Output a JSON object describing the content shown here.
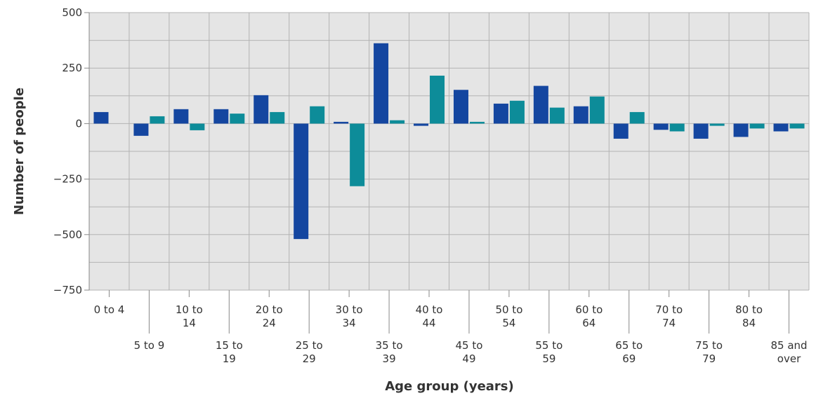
{
  "chart_data": {
    "type": "bar",
    "title": "",
    "xlabel": "Age group (years)",
    "ylabel": "Number of people",
    "ylim": [
      -750,
      500
    ],
    "yticks": [
      500,
      250,
      0,
      -250,
      -500,
      -750
    ],
    "ytick_labels": [
      "500",
      "250",
      "0",
      "−250",
      "−500",
      "−750"
    ],
    "grid": true,
    "legend": "none",
    "categories": [
      [
        "0 to 4"
      ],
      [
        "5 to 9"
      ],
      [
        "10 to",
        "14"
      ],
      [
        "15 to",
        "19"
      ],
      [
        "20 to",
        "24"
      ],
      [
        "25 to",
        "29"
      ],
      [
        "30 to",
        "34"
      ],
      [
        "35 to",
        "39"
      ],
      [
        "40 to",
        "44"
      ],
      [
        "45 to",
        "49"
      ],
      [
        "50 to",
        "54"
      ],
      [
        "55 to",
        "59"
      ],
      [
        "60 to",
        "64"
      ],
      [
        "65 to",
        "69"
      ],
      [
        "70 to",
        "74"
      ],
      [
        "75 to",
        "79"
      ],
      [
        "80 to",
        "84"
      ],
      [
        "85 and",
        "over"
      ]
    ],
    "series": [
      {
        "color": "#1446a0",
        "values": [
          52,
          -55,
          65,
          65,
          128,
          -520,
          8,
          362,
          -10,
          152,
          90,
          170,
          78,
          -68,
          -28,
          -68,
          -60,
          -35
        ]
      },
      {
        "color": "#0d8c99",
        "values": [
          0,
          33,
          -30,
          45,
          52,
          78,
          -282,
          15,
          216,
          8,
          103,
          72,
          122,
          52,
          -35,
          -10,
          -22,
          -22
        ]
      }
    ]
  },
  "colors": {
    "plot_background": "#e5e5e5",
    "grid": "#b3b3b3",
    "text": "#333333"
  }
}
